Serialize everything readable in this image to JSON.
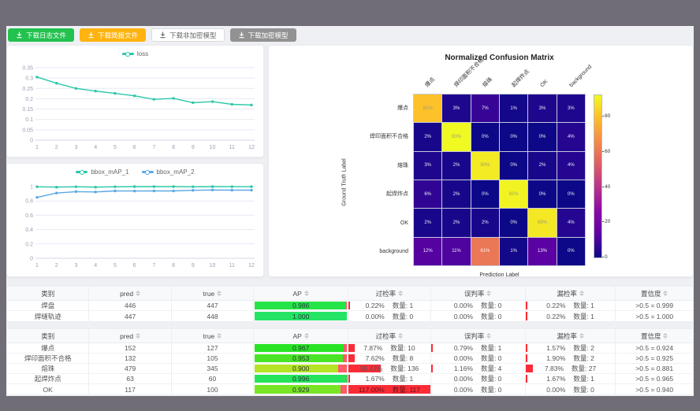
{
  "toolbar": {
    "buttons": [
      {
        "label": "下载日志文件",
        "color": "#23c14e",
        "style": "green"
      },
      {
        "label": "下载简报文件",
        "color": "#ffb30f",
        "style": "orange"
      },
      {
        "label": "下载非加密模型",
        "color": "#ffffff",
        "style": "white"
      },
      {
        "label": "下载加密模型",
        "color": "#929292",
        "style": "gray"
      }
    ]
  },
  "chart_data": [
    {
      "type": "line",
      "title": "",
      "legend": [
        "loss"
      ],
      "legend_position": "top",
      "x": [
        1,
        2,
        3,
        4,
        5,
        6,
        7,
        8,
        9,
        10,
        11,
        12
      ],
      "series": [
        {
          "name": "loss",
          "color": "#2bc8a8",
          "values": [
            0.305,
            0.275,
            0.25,
            0.237,
            0.226,
            0.214,
            0.197,
            0.202,
            0.181,
            0.186,
            0.173,
            0.17
          ]
        }
      ],
      "ylim": [
        0,
        0.35
      ],
      "yticks": [
        0,
        0.05,
        0.1,
        0.15,
        0.2,
        0.25,
        0.3,
        0.35
      ],
      "grid": true
    },
    {
      "type": "line",
      "title": "",
      "legend": [
        "bbox_mAP_1",
        "bbox_mAP_2"
      ],
      "legend_position": "top",
      "x": [
        1,
        2,
        3,
        4,
        5,
        6,
        7,
        8,
        9,
        10,
        11,
        12
      ],
      "series": [
        {
          "name": "bbox_mAP_1",
          "color": "#2bc8a8",
          "values": [
            0.998,
            0.992,
            0.998,
            0.992,
            0.998,
            1.0,
            1.0,
            1.0,
            0.998,
            1.0,
            0.999,
            0.999
          ]
        },
        {
          "name": "bbox_mAP_2",
          "color": "#5ba8e5",
          "values": [
            0.85,
            0.91,
            0.93,
            0.925,
            0.94,
            0.938,
            0.94,
            0.94,
            0.948,
            0.953,
            0.95,
            0.95
          ]
        }
      ],
      "ylim": [
        0,
        1
      ],
      "yticks": [
        0,
        0.2,
        0.4,
        0.6,
        0.8,
        1
      ],
      "grid": true
    },
    {
      "type": "heatmap",
      "title": "Normalized Confusion Matrix",
      "xlabel": "Prediction Label",
      "ylabel": "Ground Truth Label",
      "categories": [
        "爆点",
        "焊印面积不合格",
        "熔珠",
        "起焊炸点",
        "OK",
        "background"
      ],
      "matrix_percent": [
        [
          81,
          3,
          7,
          1,
          3,
          3
        ],
        [
          2,
          93,
          0,
          0,
          0,
          4
        ],
        [
          3,
          2,
          90,
          0,
          2,
          4
        ],
        [
          6,
          2,
          0,
          92,
          0,
          0
        ],
        [
          2,
          2,
          2,
          0,
          89,
          4
        ],
        [
          12,
          11,
          61,
          1,
          13,
          0
        ]
      ],
      "colormap": "plasma",
      "vmax": 93,
      "colorbar_ticks": [
        0,
        20,
        40,
        60,
        80
      ]
    }
  ],
  "tables": [
    {
      "headers": [
        "类别",
        "pred",
        "true",
        "AP",
        "过检率",
        "误判率",
        "漏检率",
        "置信度"
      ],
      "sortable": [
        false,
        true,
        true,
        true,
        true,
        true,
        true,
        true
      ],
      "rows": [
        {
          "category": "焊盘",
          "pred": "446",
          "true": "447",
          "ap": "0.986",
          "ap_val": 0.986,
          "overkill": {
            "pct": "0.22%",
            "count": "数量: 1",
            "val": 0.22
          },
          "misjudge": {
            "pct": "0.00%",
            "count": "数量: 0",
            "val": 0
          },
          "miss": {
            "pct": "0.22%",
            "count": "数量: 1",
            "val": 0.22
          },
          "confidence": ">0.5 = 0.999"
        },
        {
          "category": "焊缝轨迹",
          "pred": "447",
          "true": "448",
          "ap": "1.000",
          "ap_val": 1.0,
          "overkill": {
            "pct": "0.00%",
            "count": "数量: 0",
            "val": 0
          },
          "misjudge": {
            "pct": "0.00%",
            "count": "数量: 0",
            "val": 0
          },
          "miss": {
            "pct": "0.22%",
            "count": "数量: 1",
            "val": 0.22
          },
          "confidence": ">0.5 = 1.000"
        }
      ]
    },
    {
      "headers": [
        "类别",
        "pred",
        "true",
        "AP",
        "过检率",
        "误判率",
        "漏检率",
        "置信度"
      ],
      "sortable": [
        false,
        true,
        true,
        true,
        true,
        true,
        true,
        true
      ],
      "rows": [
        {
          "category": "爆点",
          "pred": "152",
          "true": "127",
          "ap": "0.967",
          "ap_val": 0.967,
          "overkill": {
            "pct": "7.87%",
            "count": "数量: 10",
            "val": 7.87
          },
          "misjudge": {
            "pct": "0.79%",
            "count": "数量: 1",
            "val": 0.79
          },
          "miss": {
            "pct": "1.57%",
            "count": "数量: 2",
            "val": 1.57
          },
          "confidence": ">0.5 = 0.924"
        },
        {
          "category": "焊印面积不合格",
          "pred": "132",
          "true": "105",
          "ap": "0.953",
          "ap_val": 0.953,
          "overkill": {
            "pct": "7.62%",
            "count": "数量: 8",
            "val": 7.62
          },
          "misjudge": {
            "pct": "0.00%",
            "count": "数量: 0",
            "val": 0
          },
          "miss": {
            "pct": "1.90%",
            "count": "数量: 2",
            "val": 1.9
          },
          "confidence": ">0.5 = 0.925"
        },
        {
          "category": "熔珠",
          "pred": "479",
          "true": "345",
          "ap": "0.900",
          "ap_val": 0.9,
          "overkill": {
            "pct": "39.42%",
            "count": "数量: 136",
            "val": 39.42
          },
          "misjudge": {
            "pct": "1.16%",
            "count": "数量: 4",
            "val": 1.16
          },
          "miss": {
            "pct": "7.83%",
            "count": "数量: 27",
            "val": 7.83
          },
          "confidence": ">0.5 = 0.881"
        },
        {
          "category": "起焊炸点",
          "pred": "63",
          "true": "60",
          "ap": "0.996",
          "ap_val": 0.996,
          "overkill": {
            "pct": "1.67%",
            "count": "数量: 1",
            "val": 1.67
          },
          "misjudge": {
            "pct": "0.00%",
            "count": "数量: 0",
            "val": 0
          },
          "miss": {
            "pct": "1.67%",
            "count": "数量: 1",
            "val": 1.67
          },
          "confidence": ">0.5 = 0.965"
        },
        {
          "category": "OK",
          "pred": "117",
          "true": "100",
          "ap": "0.929",
          "ap_val": 0.929,
          "overkill": {
            "pct": "117.00%",
            "count": "数量: 117",
            "val": 117
          },
          "misjudge": {
            "pct": "0.00%",
            "count": "数量: 0",
            "val": 0
          },
          "miss": {
            "pct": "0.00%",
            "count": "数量: 0",
            "val": 0
          },
          "confidence": ">0.5 = 0.940"
        }
      ]
    }
  ],
  "colors": {
    "accent_teal": "#2bc8a8",
    "accent_blue": "#5ba8e5",
    "ap_remainder_red": "#ff5b6a",
    "pct_bar_red": "#fb2c36",
    "frame_dark": "#716d76",
    "content_bg": "#eef0f4"
  }
}
